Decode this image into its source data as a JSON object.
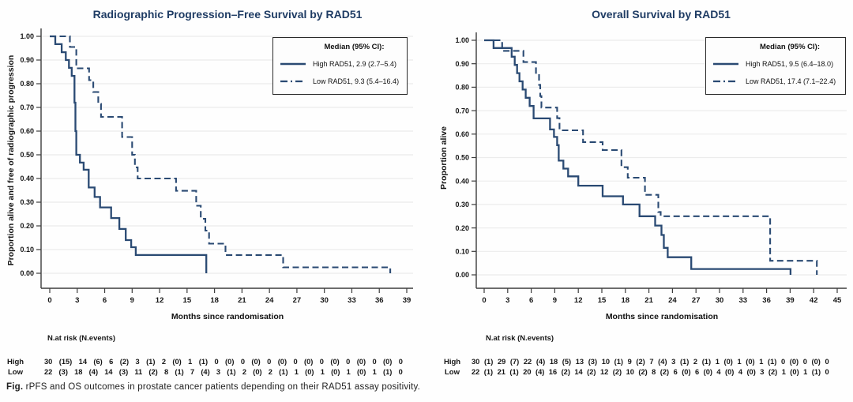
{
  "colors": {
    "curve": "#2a4a73",
    "title": "#1f3c64",
    "grid": "#ececec",
    "axis": "#3d3d3d",
    "text": "#161616"
  },
  "caption": {
    "label": "Fig.",
    "text": " rPFS and OS outcomes in prostate cancer patients depending on their RAD51 assay positivity."
  },
  "chart_data": [
    {
      "id": "rpfs",
      "type": "line",
      "subtype": "kaplan-meier-step",
      "title": "Radiographic Progression–Free Survival by RAD51",
      "xlabel": "Months since randomisation",
      "ylabel": "Proportion alive and free of radiographic progression",
      "xlim": [
        0,
        39
      ],
      "ylim": [
        0,
        1
      ],
      "grid": true,
      "xticks": [
        0,
        3,
        6,
        9,
        12,
        15,
        18,
        21,
        24,
        27,
        30,
        33,
        36,
        39
      ],
      "yticks": [
        "1.00",
        "0.90",
        "0.80",
        "0.70",
        "0.60",
        "0.50",
        "0.40",
        "0.30",
        "0.20",
        "0.10",
        "0.00"
      ],
      "legend": {
        "position": "top-right",
        "title": "Median (95% CI):",
        "entries": [
          {
            "label": "High RAD51, 2.9 (2.7–5.4)",
            "style": "solid"
          },
          {
            "label": "Low RAD51, 9.3 (5.4–16.4)",
            "style": "dashed"
          }
        ]
      },
      "series": [
        {
          "name": "High RAD51",
          "style": "solid",
          "median": "2.9 (2.7–5.4)",
          "steps": [
            [
              0,
              1.0
            ],
            [
              0.6,
              0.967
            ],
            [
              1.3,
              0.933
            ],
            [
              1.75,
              0.9
            ],
            [
              2.1,
              0.867
            ],
            [
              2.4,
              0.833
            ],
            [
              2.7,
              0.72
            ],
            [
              2.8,
              0.6
            ],
            [
              2.9,
              0.5
            ],
            [
              3.3,
              0.467
            ],
            [
              3.7,
              0.437
            ],
            [
              4.25,
              0.362
            ],
            [
              4.9,
              0.322
            ],
            [
              5.5,
              0.278
            ],
            [
              6.7,
              0.233
            ],
            [
              7.6,
              0.187
            ],
            [
              8.3,
              0.14
            ],
            [
              8.9,
              0.11
            ],
            [
              9.4,
              0.077
            ],
            [
              17.1,
              0.0
            ]
          ]
        },
        {
          "name": "Low RAD51",
          "style": "dashed",
          "median": "9.3 (5.4–16.4)",
          "steps": [
            [
              0,
              1.0
            ],
            [
              2.2,
              0.955
            ],
            [
              2.9,
              0.865
            ],
            [
              4.3,
              0.815
            ],
            [
              4.75,
              0.765
            ],
            [
              5.3,
              0.715
            ],
            [
              5.6,
              0.66
            ],
            [
              7.9,
              0.575
            ],
            [
              9.0,
              0.5
            ],
            [
              9.3,
              0.447
            ],
            [
              9.6,
              0.4
            ],
            [
              13.8,
              0.348
            ],
            [
              16.0,
              0.285
            ],
            [
              16.5,
              0.23
            ],
            [
              17.0,
              0.18
            ],
            [
              17.4,
              0.125
            ],
            [
              19.2,
              0.077
            ],
            [
              25.5,
              0.025
            ],
            [
              37.2,
              0.0
            ]
          ]
        }
      ],
      "risk_table": {
        "header": "N.at risk (N.events)",
        "rows": [
          {
            "label": "High",
            "values": [
              "30 (15)",
              "14 (6)",
              "6 (2)",
              "3 (1)",
              "2 (0)",
              "1 (1)",
              "0 (0)",
              "0 (0)",
              "0 (0)",
              "0 (0)",
              "0 (0)",
              "0 (0)",
              "0 (0)",
              "0"
            ]
          },
          {
            "label": "Low",
            "values": [
              "22 (3)",
              "18 (4)",
              "14 (3)",
              "11 (2)",
              "8 (1)",
              "7 (4)",
              "3 (1)",
              "2 (0)",
              "2 (1)",
              "1 (0)",
              "1 (0)",
              "1 (0)",
              "1 (1)",
              "0"
            ]
          }
        ]
      }
    },
    {
      "id": "os",
      "type": "line",
      "subtype": "kaplan-meier-step",
      "title": "Overall Survival by RAD51",
      "xlabel": "Months since randomisation",
      "ylabel": "Proportion alive",
      "xlim": [
        0,
        45
      ],
      "ylim": [
        0,
        1
      ],
      "grid": true,
      "xticks": [
        0,
        3,
        6,
        9,
        12,
        15,
        18,
        21,
        24,
        27,
        30,
        33,
        36,
        39,
        42,
        45
      ],
      "yticks": [
        "1.00",
        "0.90",
        "0.80",
        "0.70",
        "0.60",
        "0.50",
        "0.40",
        "0.30",
        "0.20",
        "0.10",
        "0.00"
      ],
      "legend": {
        "position": "top-right",
        "title": "Median (95% CI):",
        "entries": [
          {
            "label": "High RAD51, 9.5 (6.4–18.0)",
            "style": "solid"
          },
          {
            "label": "Low RAD51, 17.4 (7.1–22.4)",
            "style": "dashed"
          }
        ]
      },
      "series": [
        {
          "name": "High RAD51",
          "style": "solid",
          "median": "9.5 (6.4–18.0)",
          "steps": [
            [
              0,
              1.0
            ],
            [
              1.2,
              0.967
            ],
            [
              3.5,
              0.93
            ],
            [
              3.9,
              0.895
            ],
            [
              4.2,
              0.86
            ],
            [
              4.5,
              0.825
            ],
            [
              4.9,
              0.79
            ],
            [
              5.3,
              0.755
            ],
            [
              5.8,
              0.72
            ],
            [
              6.3,
              0.667
            ],
            [
              8.4,
              0.62
            ],
            [
              8.9,
              0.588
            ],
            [
              9.3,
              0.553
            ],
            [
              9.5,
              0.487
            ],
            [
              10.1,
              0.453
            ],
            [
              10.7,
              0.42
            ],
            [
              12.0,
              0.38
            ],
            [
              15.1,
              0.335
            ],
            [
              17.7,
              0.3
            ],
            [
              19.8,
              0.25
            ],
            [
              21.8,
              0.21
            ],
            [
              22.6,
              0.17
            ],
            [
              22.9,
              0.115
            ],
            [
              23.4,
              0.075
            ],
            [
              26.4,
              0.025
            ],
            [
              39.05,
              0.0
            ]
          ]
        },
        {
          "name": "Low RAD51",
          "style": "dashed",
          "median": "17.4 (7.1–22.4)",
          "steps": [
            [
              0,
              1.0
            ],
            [
              2.3,
              0.955
            ],
            [
              5.0,
              0.907
            ],
            [
              6.6,
              0.857
            ],
            [
              7.0,
              0.81
            ],
            [
              7.15,
              0.762
            ],
            [
              7.3,
              0.713
            ],
            [
              9.3,
              0.668
            ],
            [
              9.6,
              0.616
            ],
            [
              12.6,
              0.566
            ],
            [
              15.1,
              0.532
            ],
            [
              17.5,
              0.459
            ],
            [
              18.3,
              0.414
            ],
            [
              20.5,
              0.341
            ],
            [
              22.2,
              0.268
            ],
            [
              22.5,
              0.25
            ],
            [
              36.45,
              0.06
            ],
            [
              42.4,
              0.0
            ]
          ]
        }
      ],
      "risk_table": {
        "header": "N.at risk (N.events)",
        "rows": [
          {
            "label": "High",
            "values": [
              "30 (1)",
              "29 (7)",
              "22 (4)",
              "18 (5)",
              "13 (3)",
              "10 (1)",
              "9 (2)",
              "7 (4)",
              "3 (1)",
              "2 (1)",
              "1 (0)",
              "1 (0)",
              "1 (1)",
              "0 (0)",
              "0 (0)",
              "0"
            ]
          },
          {
            "label": "Low",
            "values": [
              "22 (1)",
              "21 (1)",
              "20 (4)",
              "16 (2)",
              "14 (2)",
              "12 (2)",
              "10 (2)",
              "8 (2)",
              "6 (0)",
              "6 (0)",
              "4 (0)",
              "4 (0)",
              "3 (2)",
              "1 (0)",
              "1 (1)",
              "0"
            ]
          }
        ]
      }
    }
  ]
}
